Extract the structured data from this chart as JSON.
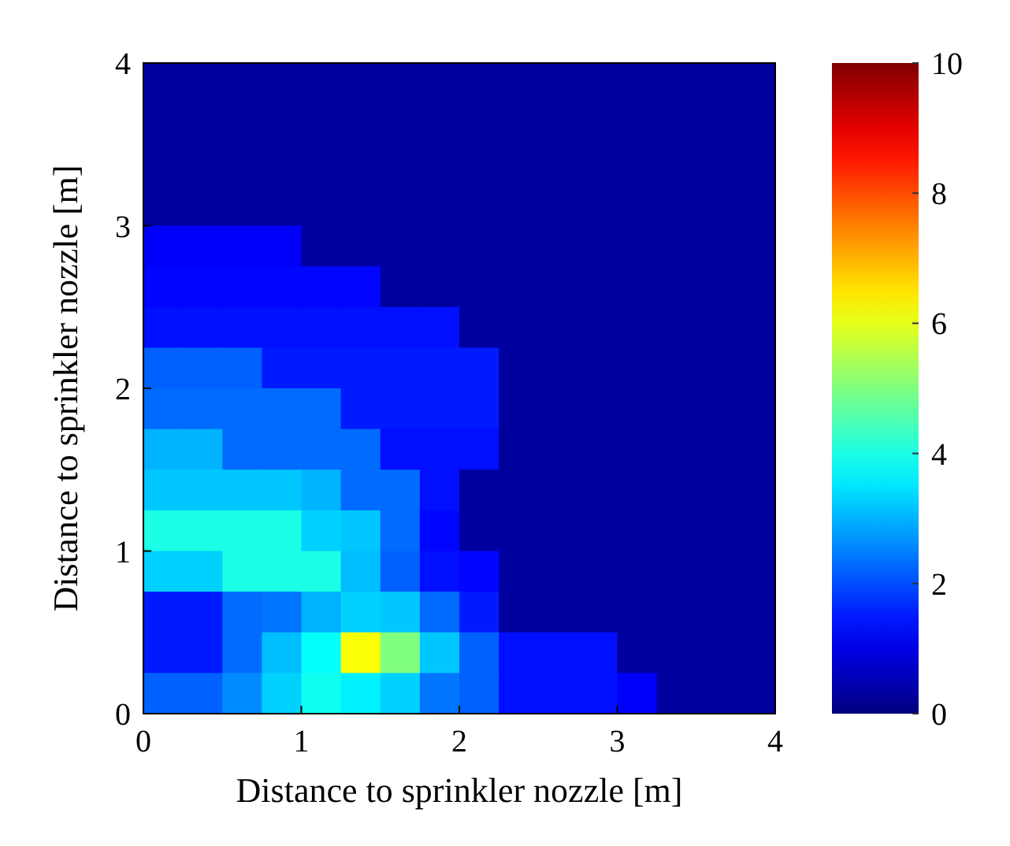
{
  "chart_data": {
    "type": "heatmap",
    "xlabel": "Distance to sprinkler nozzle [m]",
    "ylabel": "Distance to sprinkler nozzle [m]",
    "xlim": [
      0,
      4
    ],
    "ylim": [
      0,
      4
    ],
    "xticks": [
      0,
      1,
      2,
      3,
      4
    ],
    "yticks": [
      0,
      1,
      2,
      3,
      4
    ],
    "clim": [
      0,
      10
    ],
    "cticks": [
      0,
      2,
      4,
      6,
      8,
      10
    ],
    "cells": [
      [
        0.3,
        0.3,
        0.3,
        0.3,
        0.3,
        0.3,
        0.3,
        0.3,
        0.3,
        0.3,
        0.3,
        0.3,
        0.3,
        0.3,
        0.3,
        0.3
      ],
      [
        0.3,
        0.3,
        0.3,
        0.3,
        0.3,
        0.3,
        0.3,
        0.3,
        0.3,
        0.3,
        0.3,
        0.3,
        0.3,
        0.3,
        0.3,
        0.3
      ],
      [
        0.3,
        0.3,
        0.3,
        0.3,
        0.3,
        0.3,
        0.3,
        0.3,
        0.3,
        0.3,
        0.3,
        0.3,
        0.3,
        0.3,
        0.3,
        0.3
      ],
      [
        0.3,
        0.3,
        0.3,
        0.3,
        0.3,
        0.3,
        0.3,
        0.3,
        0.3,
        0.3,
        0.3,
        0.3,
        0.3,
        0.3,
        0.3,
        0.3
      ],
      [
        1.2,
        1.2,
        1.2,
        1.2,
        0.3,
        0.3,
        0.3,
        0.3,
        0.3,
        0.3,
        0.3,
        0.3,
        0.3,
        0.3,
        0.3,
        0.3
      ],
      [
        1.3,
        1.3,
        1.3,
        1.3,
        1.3,
        1.3,
        0.3,
        0.3,
        0.3,
        0.3,
        0.3,
        0.3,
        0.3,
        0.3,
        0.3,
        0.3
      ],
      [
        1.4,
        1.4,
        1.4,
        1.4,
        1.4,
        1.4,
        1.4,
        1.4,
        0.3,
        0.3,
        0.3,
        0.3,
        0.3,
        0.3,
        0.3,
        0.3
      ],
      [
        2.2,
        2.2,
        2.2,
        1.5,
        1.5,
        1.5,
        1.5,
        1.5,
        1.5,
        0.3,
        0.3,
        0.3,
        0.3,
        0.3,
        0.3,
        0.3
      ],
      [
        2.3,
        2.3,
        2.3,
        2.3,
        2.3,
        1.5,
        1.5,
        1.5,
        1.5,
        0.3,
        0.3,
        0.3,
        0.3,
        0.3,
        0.3,
        0.3
      ],
      [
        3.0,
        3.0,
        2.3,
        2.3,
        2.3,
        2.3,
        1.4,
        1.4,
        1.4,
        0.3,
        0.3,
        0.3,
        0.3,
        0.3,
        0.3,
        0.3
      ],
      [
        3.2,
        3.2,
        3.2,
        3.2,
        3.0,
        2.3,
        2.3,
        1.4,
        0.3,
        0.3,
        0.3,
        0.3,
        0.3,
        0.3,
        0.3,
        0.3
      ],
      [
        4.0,
        4.0,
        4.0,
        4.0,
        3.3,
        3.2,
        2.3,
        1.3,
        0.3,
        0.3,
        0.3,
        0.3,
        0.3,
        0.3,
        0.3,
        0.3
      ],
      [
        3.3,
        3.3,
        4.0,
        4.0,
        4.0,
        3.1,
        2.2,
        1.4,
        1.3,
        0.3,
        0.3,
        0.3,
        0.3,
        0.3,
        0.3,
        0.3
      ],
      [
        1.5,
        1.5,
        2.3,
        2.4,
        3.0,
        3.3,
        3.2,
        2.3,
        1.5,
        0.3,
        0.3,
        0.3,
        0.3,
        0.3,
        0.3,
        0.3
      ],
      [
        1.5,
        1.5,
        2.3,
        3.1,
        3.8,
        6.2,
        5.0,
        3.2,
        2.2,
        1.4,
        1.4,
        1.4,
        0.3,
        0.3,
        0.3,
        0.3
      ],
      [
        2.2,
        2.2,
        2.6,
        3.3,
        3.9,
        3.6,
        3.3,
        2.4,
        2.2,
        1.4,
        1.4,
        1.4,
        1.2,
        0.3,
        0.3,
        0.3
      ]
    ]
  }
}
